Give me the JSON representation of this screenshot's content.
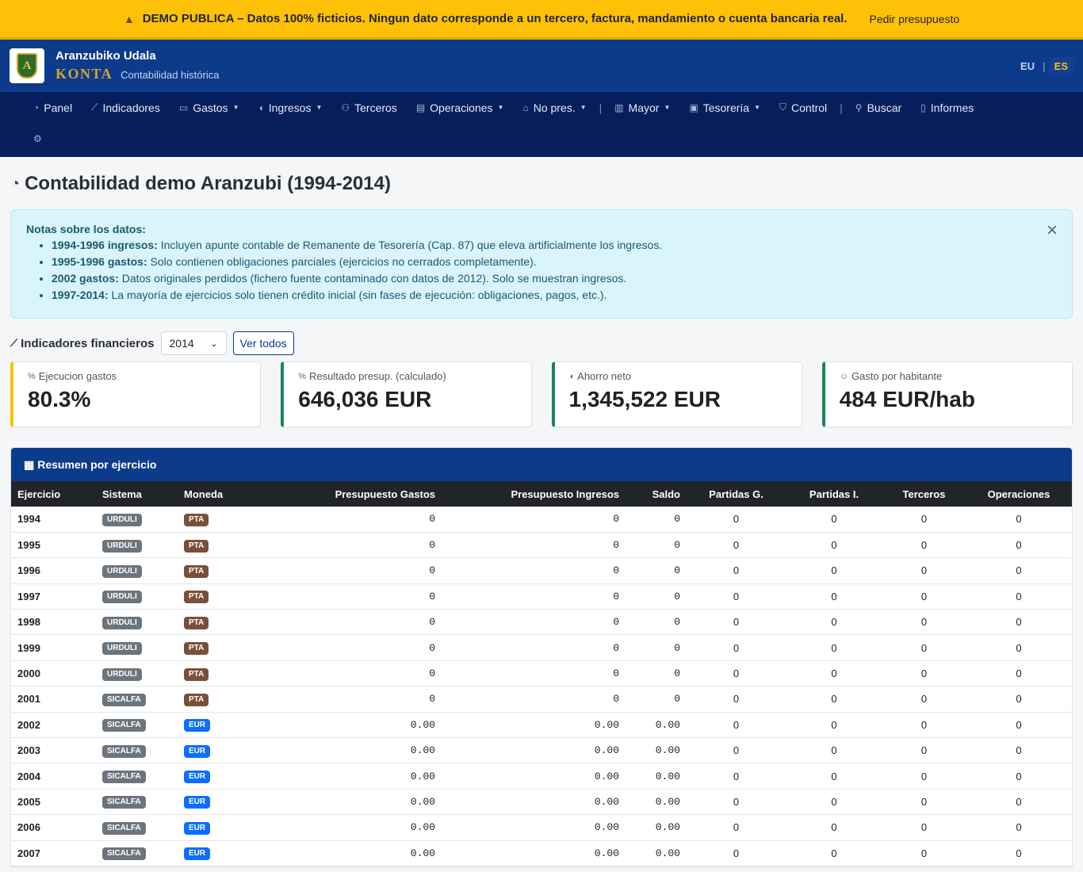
{
  "banner": {
    "text": "DEMO PUBLICA – Datos 100% ficticios. Ningun dato corresponde a un tercero, factura, mandamiento o cuenta bancaria real.",
    "link": "Pedir presupuesto"
  },
  "header": {
    "logo_letter": "A",
    "org": "Aranzubiko Udala",
    "product": "KONTA",
    "tagline": "Contabilidad histórica",
    "lang_eu": "EU",
    "lang_sep": "|",
    "lang_es": "ES"
  },
  "nav": {
    "items": [
      {
        "label": "Panel",
        "icon": "gauge-icon"
      },
      {
        "label": "Indicadores",
        "icon": "chart-line-icon"
      },
      {
        "label": "Gastos",
        "icon": "wallet-icon",
        "dropdown": true
      },
      {
        "label": "Ingresos",
        "icon": "piggy-bank-icon",
        "dropdown": true
      },
      {
        "label": "Terceros",
        "icon": "people-icon"
      },
      {
        "label": "Operaciones",
        "icon": "receipt-icon",
        "dropdown": true
      },
      {
        "label": "No pres.",
        "icon": "bank-icon",
        "dropdown": true
      },
      {
        "label": "Mayor",
        "icon": "journal-icon",
        "dropdown": true
      },
      {
        "label": "Tesorería",
        "icon": "safe-icon",
        "dropdown": true
      },
      {
        "label": "Control",
        "icon": "shield-check-icon"
      },
      {
        "label": "Buscar",
        "icon": "search-icon"
      },
      {
        "label": "Informes",
        "icon": "file-icon"
      }
    ],
    "settings_icon": "gear-icon"
  },
  "page": {
    "title": "Contabilidad demo Aranzubi (1994-2014)"
  },
  "notes": {
    "title": "Notas sobre los datos:",
    "items": [
      {
        "bold": "1994-1996 ingresos:",
        "text": " Incluyen apunte contable de Remanente de Tesorería (Cap. 87) que eleva artificialmente los ingresos."
      },
      {
        "bold": "1995-1996 gastos:",
        "text": " Solo contienen obligaciones parciales (ejercicios no cerrados completamente)."
      },
      {
        "bold": "2002 gastos:",
        "text": " Datos originales perdidos (fichero fuente contaminado con datos de 2012). Solo se muestran ingresos."
      },
      {
        "bold": "1997-2014:",
        "text": " La mayoría de ejercicios solo tienen crédito inicial (sin fases de ejecución: obligaciones, pagos, etc.)."
      }
    ],
    "close": "×"
  },
  "indicators": {
    "title": "Indicadores financieros",
    "selected_year": "2014",
    "ver_todos": "Ver todos",
    "kpis": [
      {
        "label": "Ejecucion gastos",
        "value": "80.3%",
        "icon": "percent-icon",
        "accent": "#ffc107"
      },
      {
        "label": "Resultado presup. (calculado)",
        "value": "646,036 EUR",
        "icon": "percent-icon",
        "accent": "#198754"
      },
      {
        "label": "Ahorro neto",
        "value": "1,345,522 EUR",
        "icon": "piggy-bank-icon",
        "accent": "#198754"
      },
      {
        "label": "Gasto por habitante",
        "value": "484 EUR/hab",
        "icon": "person-icon",
        "accent": "#198754"
      }
    ]
  },
  "summary": {
    "title": "Resumen por ejercicio",
    "columns": [
      "Ejercicio",
      "Sistema",
      "Moneda",
      "Presupuesto Gastos",
      "Presupuesto Ingresos",
      "Saldo",
      "Partidas G.",
      "Partidas I.",
      "Terceros",
      "Operaciones"
    ],
    "rows": [
      [
        "1994",
        "URDULI",
        "PTA",
        "0",
        "0",
        "0",
        "0",
        "0",
        "0",
        "0"
      ],
      [
        "1995",
        "URDULI",
        "PTA",
        "0",
        "0",
        "0",
        "0",
        "0",
        "0",
        "0"
      ],
      [
        "1996",
        "URDULI",
        "PTA",
        "0",
        "0",
        "0",
        "0",
        "0",
        "0",
        "0"
      ],
      [
        "1997",
        "URDULI",
        "PTA",
        "0",
        "0",
        "0",
        "0",
        "0",
        "0",
        "0"
      ],
      [
        "1998",
        "URDULI",
        "PTA",
        "0",
        "0",
        "0",
        "0",
        "0",
        "0",
        "0"
      ],
      [
        "1999",
        "URDULI",
        "PTA",
        "0",
        "0",
        "0",
        "0",
        "0",
        "0",
        "0"
      ],
      [
        "2000",
        "URDULI",
        "PTA",
        "0",
        "0",
        "0",
        "0",
        "0",
        "0",
        "0"
      ],
      [
        "2001",
        "SICALFA",
        "PTA",
        "0",
        "0",
        "0",
        "0",
        "0",
        "0",
        "0"
      ],
      [
        "2002",
        "SICALFA",
        "EUR",
        "0.00",
        "0.00",
        "0.00",
        "0",
        "0",
        "0",
        "0"
      ],
      [
        "2003",
        "SICALFA",
        "EUR",
        "0.00",
        "0.00",
        "0.00",
        "0",
        "0",
        "0",
        "0"
      ],
      [
        "2004",
        "SICALFA",
        "EUR",
        "0.00",
        "0.00",
        "0.00",
        "0",
        "0",
        "0",
        "0"
      ],
      [
        "2005",
        "SICALFA",
        "EUR",
        "0.00",
        "0.00",
        "0.00",
        "0",
        "0",
        "0",
        "0"
      ],
      [
        "2006",
        "SICALFA",
        "EUR",
        "0.00",
        "0.00",
        "0.00",
        "0",
        "0",
        "0",
        "0"
      ],
      [
        "2007",
        "SICALFA",
        "EUR",
        "0.00",
        "0.00",
        "0.00",
        "0",
        "0",
        "0",
        "0"
      ]
    ]
  }
}
